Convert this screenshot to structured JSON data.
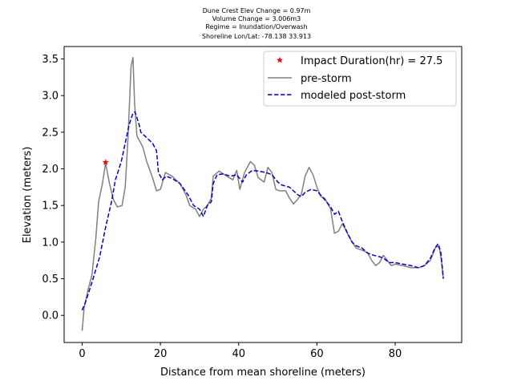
{
  "title_lines": [
    "Dune Crest Elev Change = 0.97m",
    "Volume Change = 3.006m3",
    "Regime = Inundation/Overwash",
    "Shoreline Lon/Lat: -78.138 33.913"
  ],
  "chart_data": {
    "type": "line",
    "xlabel": "Distance from mean shoreline (meters)",
    "ylabel": "Elevation (meters)",
    "xlim": [
      -4.6,
      97.0
    ],
    "ylim": [
      -0.37,
      3.67
    ],
    "xticks": [
      0,
      20,
      40,
      60,
      80
    ],
    "xtick_labels": [
      "0",
      "20",
      "40",
      "60",
      "80"
    ],
    "yticks": [
      0.0,
      0.5,
      1.0,
      1.5,
      2.0,
      2.5,
      3.0,
      3.5
    ],
    "ytick_labels": [
      "0.0",
      "0.5",
      "1.0",
      "1.5",
      "2.0",
      "2.5",
      "3.0",
      "3.5"
    ],
    "grid": false,
    "legend_position": "upper right",
    "series": [
      {
        "name": "pre-storm",
        "color": "#808080",
        "style": "solid",
        "points": [
          [
            0.0,
            -0.21
          ],
          [
            0.5,
            0.1
          ],
          [
            1.5,
            0.35
          ],
          [
            2.5,
            0.55
          ],
          [
            3.5,
            1.05
          ],
          [
            4.2,
            1.55
          ],
          [
            5.2,
            1.8
          ],
          [
            6.0,
            2.08
          ],
          [
            7.0,
            1.8
          ],
          [
            8.0,
            1.58
          ],
          [
            9.0,
            1.48
          ],
          [
            10.2,
            1.5
          ],
          [
            11.0,
            1.75
          ],
          [
            11.7,
            2.4
          ],
          [
            12.5,
            3.4
          ],
          [
            13.0,
            3.52
          ],
          [
            13.4,
            2.9
          ],
          [
            14.0,
            2.45
          ],
          [
            15.5,
            2.3
          ],
          [
            16.5,
            2.1
          ],
          [
            18.0,
            1.88
          ],
          [
            19.0,
            1.7
          ],
          [
            20.0,
            1.72
          ],
          [
            21.3,
            1.95
          ],
          [
            23.0,
            1.9
          ],
          [
            25.0,
            1.8
          ],
          [
            26.5,
            1.65
          ],
          [
            27.5,
            1.5
          ],
          [
            29.0,
            1.45
          ],
          [
            30.0,
            1.35
          ],
          [
            31.0,
            1.45
          ],
          [
            32.0,
            1.5
          ],
          [
            33.0,
            1.6
          ],
          [
            33.5,
            1.9
          ],
          [
            35.0,
            1.97
          ],
          [
            37.0,
            1.9
          ],
          [
            38.5,
            1.85
          ],
          [
            39.5,
            1.98
          ],
          [
            40.3,
            1.72
          ],
          [
            41.5,
            1.95
          ],
          [
            43.0,
            2.1
          ],
          [
            44.0,
            2.05
          ],
          [
            45.0,
            1.88
          ],
          [
            46.5,
            1.82
          ],
          [
            47.5,
            2.02
          ],
          [
            48.5,
            1.95
          ],
          [
            49.5,
            1.72
          ],
          [
            50.5,
            1.7
          ],
          [
            52.0,
            1.7
          ],
          [
            53.0,
            1.6
          ],
          [
            54.0,
            1.52
          ],
          [
            55.0,
            1.58
          ],
          [
            56.0,
            1.65
          ],
          [
            57.0,
            1.9
          ],
          [
            58.0,
            2.02
          ],
          [
            59.0,
            1.92
          ],
          [
            60.0,
            1.75
          ],
          [
            61.0,
            1.62
          ],
          [
            62.0,
            1.6
          ],
          [
            63.5,
            1.45
          ],
          [
            64.5,
            1.12
          ],
          [
            65.5,
            1.15
          ],
          [
            66.5,
            1.25
          ],
          [
            68.0,
            1.1
          ],
          [
            69.0,
            1.0
          ],
          [
            70.0,
            0.92
          ],
          [
            71.0,
            0.9
          ],
          [
            72.0,
            0.88
          ],
          [
            73.0,
            0.85
          ],
          [
            74.0,
            0.75
          ],
          [
            75.0,
            0.68
          ],
          [
            76.0,
            0.72
          ],
          [
            77.0,
            0.82
          ],
          [
            78.0,
            0.75
          ],
          [
            79.0,
            0.68
          ],
          [
            80.0,
            0.7
          ],
          [
            82.0,
            0.68
          ],
          [
            84.0,
            0.65
          ],
          [
            86.0,
            0.65
          ],
          [
            87.5,
            0.68
          ],
          [
            89.0,
            0.75
          ],
          [
            90.5,
            0.95
          ],
          [
            91.3,
            0.92
          ],
          [
            91.8,
            0.75
          ],
          [
            92.3,
            0.5
          ]
        ]
      },
      {
        "name": "modeled post-storm",
        "color": "#0000cd",
        "style": "dashed",
        "points": [
          [
            0.0,
            0.07
          ],
          [
            1.0,
            0.2
          ],
          [
            2.5,
            0.45
          ],
          [
            4.5,
            0.8
          ],
          [
            6.0,
            1.2
          ],
          [
            7.5,
            1.55
          ],
          [
            8.5,
            1.85
          ],
          [
            10.0,
            2.1
          ],
          [
            11.0,
            2.35
          ],
          [
            12.0,
            2.6
          ],
          [
            13.0,
            2.76
          ],
          [
            13.5,
            2.78
          ],
          [
            14.5,
            2.62
          ],
          [
            15.0,
            2.5
          ],
          [
            16.0,
            2.45
          ],
          [
            17.0,
            2.4
          ],
          [
            18.0,
            2.35
          ],
          [
            19.0,
            2.25
          ],
          [
            19.5,
            1.95
          ],
          [
            20.5,
            1.85
          ],
          [
            21.5,
            1.9
          ],
          [
            23.0,
            1.87
          ],
          [
            25.0,
            1.8
          ],
          [
            27.0,
            1.65
          ],
          [
            28.5,
            1.5
          ],
          [
            30.0,
            1.45
          ],
          [
            31.0,
            1.35
          ],
          [
            32.0,
            1.5
          ],
          [
            33.0,
            1.55
          ],
          [
            33.5,
            1.8
          ],
          [
            34.5,
            1.92
          ],
          [
            36.0,
            1.93
          ],
          [
            38.0,
            1.9
          ],
          [
            39.5,
            1.92
          ],
          [
            41.0,
            1.82
          ],
          [
            42.0,
            1.92
          ],
          [
            43.5,
            1.98
          ],
          [
            45.0,
            1.97
          ],
          [
            47.0,
            1.95
          ],
          [
            48.5,
            1.92
          ],
          [
            50.0,
            1.82
          ],
          [
            51.0,
            1.78
          ],
          [
            53.0,
            1.75
          ],
          [
            55.0,
            1.65
          ],
          [
            56.0,
            1.62
          ],
          [
            57.0,
            1.68
          ],
          [
            58.5,
            1.72
          ],
          [
            60.0,
            1.7
          ],
          [
            62.0,
            1.58
          ],
          [
            63.5,
            1.48
          ],
          [
            64.5,
            1.38
          ],
          [
            65.5,
            1.42
          ],
          [
            66.5,
            1.28
          ],
          [
            68.0,
            1.1
          ],
          [
            69.0,
            1.0
          ],
          [
            70.0,
            0.95
          ],
          [
            71.5,
            0.92
          ],
          [
            73.0,
            0.85
          ],
          [
            74.5,
            0.82
          ],
          [
            76.0,
            0.8
          ],
          [
            77.0,
            0.78
          ],
          [
            78.5,
            0.72
          ],
          [
            80.0,
            0.72
          ],
          [
            82.0,
            0.7
          ],
          [
            84.0,
            0.68
          ],
          [
            86.0,
            0.65
          ],
          [
            87.5,
            0.68
          ],
          [
            89.0,
            0.78
          ],
          [
            90.0,
            0.9
          ],
          [
            91.0,
            0.98
          ],
          [
            91.7,
            0.85
          ],
          [
            92.3,
            0.5
          ]
        ]
      }
    ],
    "markers": [
      {
        "name": "Impact Duration(hr) = 27.5",
        "color": "#ff0000",
        "symbol": "star",
        "x": 6.0,
        "y": 2.09
      }
    ],
    "legend": [
      "Impact Duration(hr) = 27.5",
      "pre-storm",
      "modeled post-storm"
    ]
  }
}
